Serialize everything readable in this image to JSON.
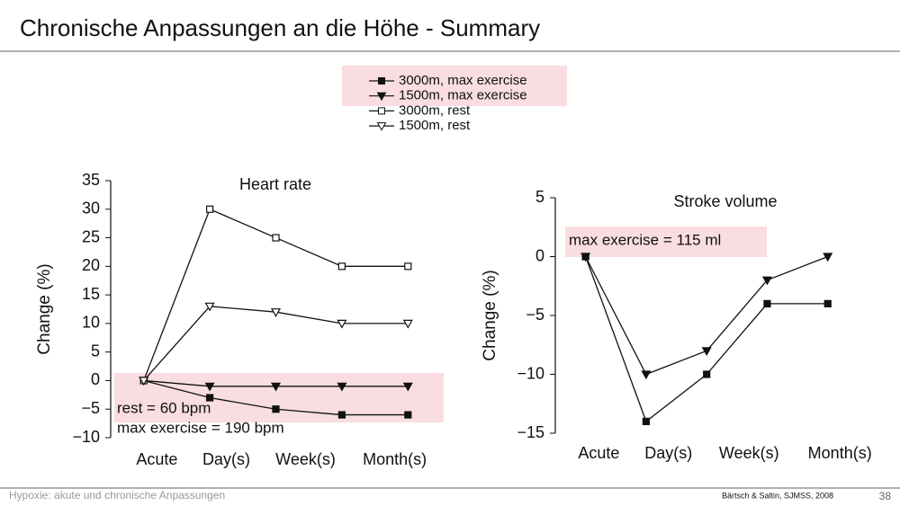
{
  "title": "Chronische Anpassungen an die Höhe - Summary",
  "footer": "Hypoxie: akute und chronische Anpassungen",
  "citation": "Bärtsch & Saltin, SJMSS, 2008",
  "page_number": "38",
  "chart_data": [
    {
      "type": "line",
      "title": "Heart rate",
      "y_label": "Change (%)",
      "x": [
        0,
        1,
        2,
        3,
        4
      ],
      "xlim": [
        -0.5,
        4.5
      ],
      "xticks": [
        {
          "value": 0.2,
          "label": "Acute"
        },
        {
          "value": 1.25,
          "label": "Day(s)"
        },
        {
          "value": 2.45,
          "label": "Week(s)"
        },
        {
          "value": 3.8,
          "label": "Month(s)"
        }
      ],
      "ylim": [
        -10,
        35
      ],
      "yticks": [
        {
          "value": -10,
          "label": "−10"
        },
        {
          "value": -5,
          "label": "−5"
        },
        0,
        5,
        10,
        15,
        20,
        25,
        30,
        35
      ],
      "annotations": [
        "rest = 60 bpm",
        "max exercise = 190 bpm"
      ],
      "series": [
        {
          "name": "3000m, max exercise",
          "color": "#111111",
          "marker": "square",
          "filled": true,
          "values": [
            0,
            -3,
            -5,
            -6,
            -6
          ]
        },
        {
          "name": "1500m, max exercise",
          "color": "#111111",
          "marker": "triangle",
          "filled": true,
          "values": [
            0,
            -1,
            -1,
            -1,
            -1
          ]
        },
        {
          "name": "3000m, rest",
          "color": "#111111",
          "marker": "square",
          "filled": false,
          "values": [
            0,
            30,
            25,
            20,
            20
          ]
        },
        {
          "name": "1500m, rest",
          "color": "#111111",
          "marker": "triangle",
          "filled": false,
          "values": [
            0,
            13,
            12,
            10,
            10
          ]
        }
      ]
    },
    {
      "type": "line",
      "title": "Stroke volume",
      "y_label": "Change (%)",
      "x": [
        0,
        1,
        2,
        3,
        4
      ],
      "xlim": [
        -0.5,
        5
      ],
      "xticks": [
        {
          "value": 0.22,
          "label": "Acute"
        },
        {
          "value": 1.37,
          "label": "Day(s)"
        },
        {
          "value": 2.7,
          "label": "Week(s)"
        },
        {
          "value": 4.2,
          "label": "Month(s)"
        }
      ],
      "ylim": [
        -15,
        5
      ],
      "yticks": [
        {
          "value": -15,
          "label": "−15"
        },
        {
          "value": -10,
          "label": "−10"
        },
        {
          "value": -5,
          "label": "−5"
        },
        0,
        5
      ],
      "annotations": [
        "max exercise = 115 ml"
      ],
      "series": [
        {
          "color": "#111111",
          "marker": "square",
          "filled": true,
          "values": [
            0,
            -14,
            -10,
            -4,
            -4
          ]
        },
        {
          "color": "#111111",
          "marker": "triangle",
          "filled": true,
          "values": [
            0,
            -10,
            -8,
            -2,
            0
          ]
        }
      ]
    }
  ]
}
